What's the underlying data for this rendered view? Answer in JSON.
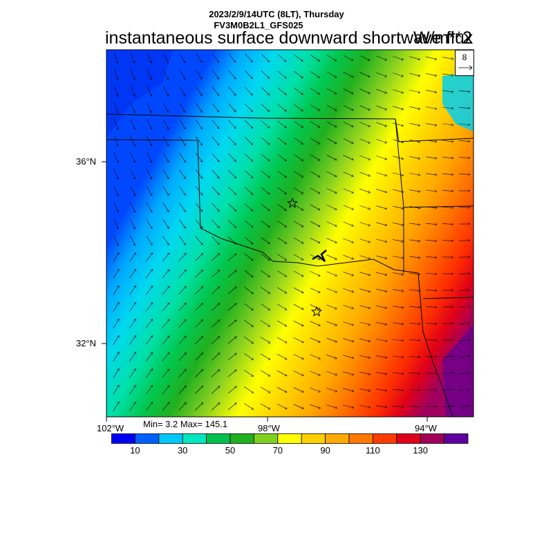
{
  "header": {
    "date_line": "2023/2/9/14UTC (8LT), Thursday",
    "model": "FV3M0B2L1_GFS025",
    "title": "instantaneous surface downward shortwave flux",
    "units": "W/m**2"
  },
  "axes": {
    "lat_labels": [
      "36°N",
      "32°N"
    ],
    "lon_labels": [
      "102°W",
      "98°W",
      "94°W"
    ]
  },
  "reference_vector": {
    "value": "8"
  },
  "stats": {
    "text": "Min= 3.2 Max= 145.1"
  },
  "colorbar": {
    "labels": [
      "10",
      "30",
      "50",
      "70",
      "90",
      "110",
      "130"
    ],
    "colors": [
      "#0000f0",
      "#0060ff",
      "#00c8f8",
      "#00e8c0",
      "#00c050",
      "#20b020",
      "#80d020",
      "#ffff00",
      "#ffd000",
      "#ffaa00",
      "#ff7800",
      "#ff3c00",
      "#e0001a",
      "#a0005a",
      "#6000a0"
    ]
  },
  "map": {
    "markers": [
      "star",
      "star"
    ]
  }
}
